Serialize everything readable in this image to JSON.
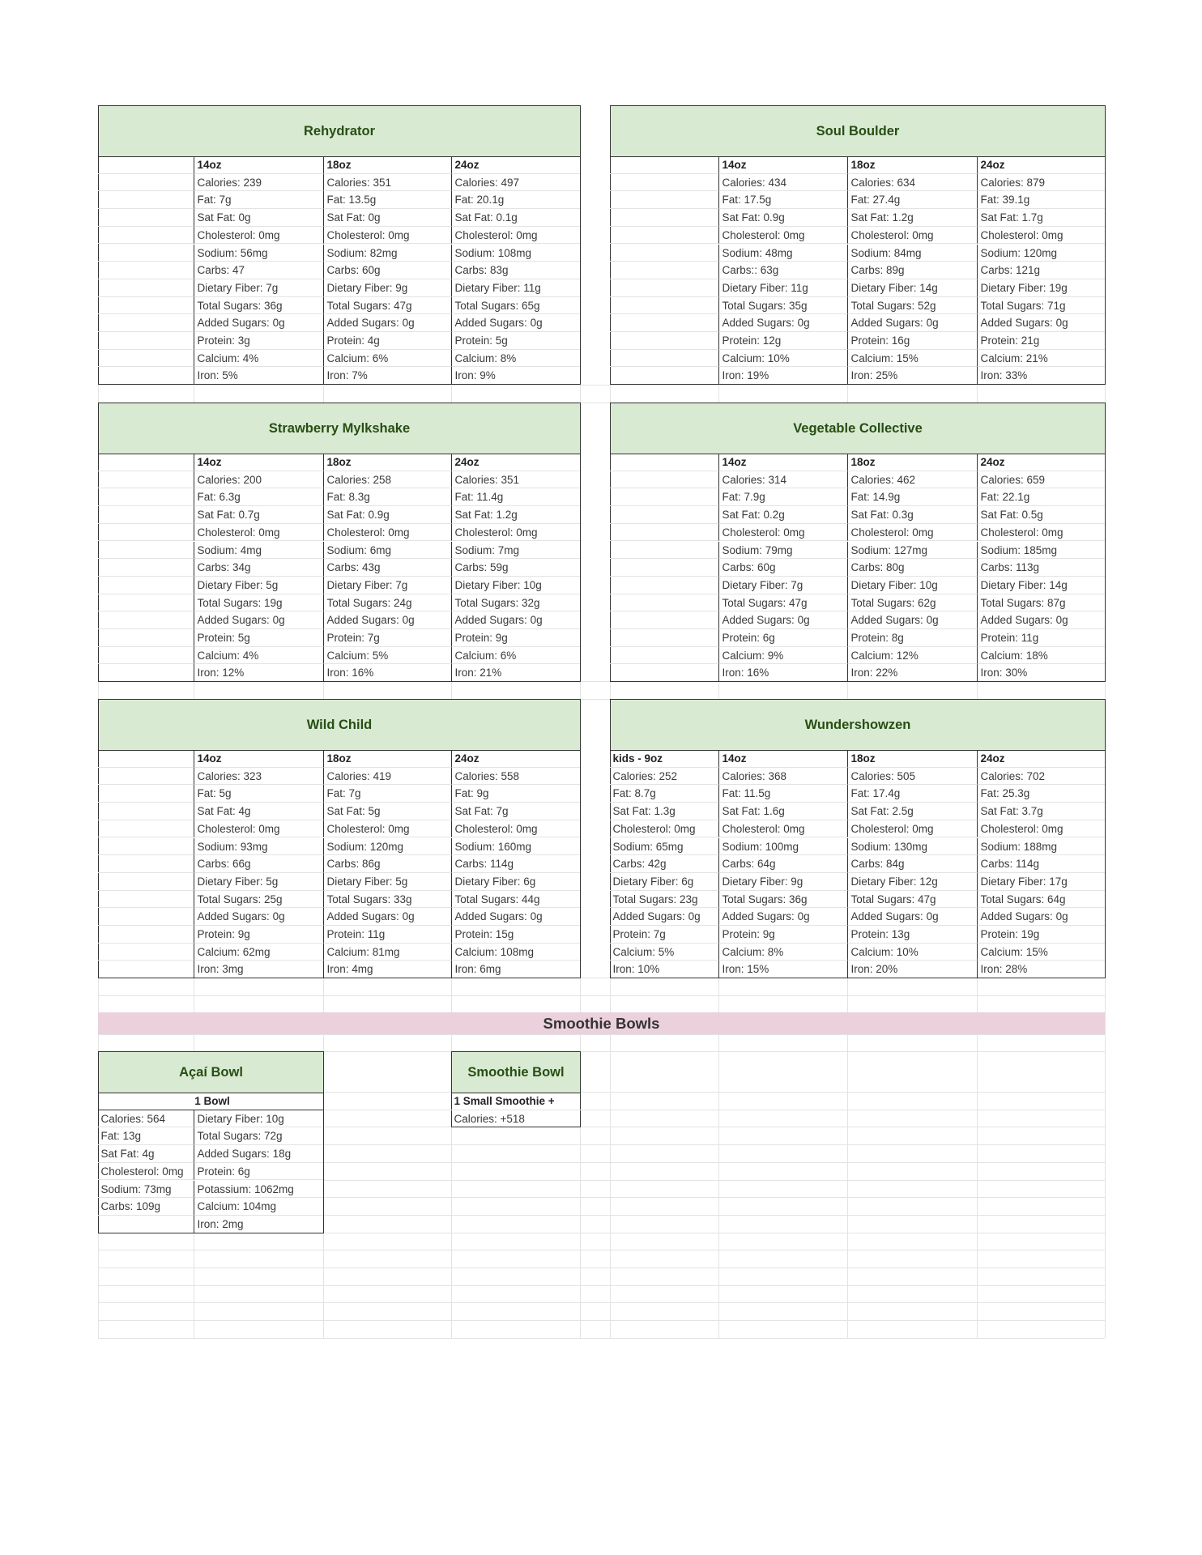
{
  "colors": {
    "header_bg": "#d9ead3",
    "header_text": "#274e13",
    "section_bg": "#ead1dc"
  },
  "drinks": [
    {
      "title": "Rehydrator",
      "columns": [
        {
          "size": "",
          "values": []
        },
        {
          "size": "14oz",
          "values": [
            "Calories: 239",
            "Fat: 7g",
            "Sat Fat: 0g",
            "Cholesterol: 0mg",
            "Sodium: 56mg",
            "Carbs: 47",
            "Dietary Fiber: 7g",
            "Total Sugars: 36g",
            "Added Sugars: 0g",
            "Protein: 3g",
            "Calcium: 4%",
            "Iron: 5%"
          ]
        },
        {
          "size": "18oz",
          "values": [
            "Calories: 351",
            "Fat: 13.5g",
            "Sat Fat: 0g",
            "Cholesterol: 0mg",
            "Sodium: 82mg",
            "Carbs: 60g",
            "Dietary Fiber: 9g",
            "Total Sugars: 47g",
            "Added Sugars: 0g",
            "Protein: 4g",
            "Calcium: 6%",
            "Iron: 7%"
          ]
        },
        {
          "size": "24oz",
          "values": [
            "Calories: 497",
            "Fat: 20.1g",
            "Sat Fat: 0.1g",
            "Cholesterol: 0mg",
            "Sodium: 108mg",
            "Carbs: 83g",
            "Dietary Fiber: 11g",
            "Total Sugars: 65g",
            "Added Sugars: 0g",
            "Protein: 5g",
            "Calcium: 8%",
            "Iron: 9%"
          ]
        }
      ]
    },
    {
      "title": "Soul Boulder",
      "columns": [
        {
          "size": "",
          "values": []
        },
        {
          "size": "14oz",
          "values": [
            "Calories: 434",
            "Fat: 17.5g",
            "Sat Fat: 0.9g",
            "Cholesterol: 0mg",
            "Sodium: 48mg",
            "Carbs:: 63g",
            "Dietary Fiber: 11g",
            "Total Sugars: 35g",
            "Added Sugars: 0g",
            "Protein: 12g",
            "Calcium: 10%",
            "Iron: 19%"
          ]
        },
        {
          "size": "18oz",
          "values": [
            "Calories: 634",
            "Fat: 27.4g",
            "Sat Fat: 1.2g",
            "Cholesterol: 0mg",
            "Sodium: 84mg",
            "Carbs: 89g",
            "Dietary Fiber: 14g",
            "Total Sugars: 52g",
            "Added Sugars: 0g",
            "Protein: 16g",
            "Calcium: 15%",
            "Iron: 25%"
          ]
        },
        {
          "size": "24oz",
          "values": [
            "Calories: 879",
            "Fat: 39.1g",
            "Sat Fat: 1.7g",
            "Cholesterol: 0mg",
            "Sodium: 120mg",
            "Carbs: 121g",
            "Dietary Fiber: 19g",
            "Total Sugars: 71g",
            "Added Sugars: 0g",
            "Protein: 21g",
            "Calcium: 21%",
            "Iron: 33%"
          ]
        }
      ]
    },
    {
      "title": "Strawberry Mylkshake",
      "columns": [
        {
          "size": "",
          "values": []
        },
        {
          "size": "14oz",
          "values": [
            "Calories: 200",
            "Fat: 6.3g",
            "Sat Fat: 0.7g",
            "Cholesterol: 0mg",
            "Sodium: 4mg",
            "Carbs: 34g",
            "Dietary Fiber: 5g",
            "Total Sugars: 19g",
            "Added Sugars: 0g",
            "Protein: 5g",
            "Calcium: 4%",
            "Iron: 12%"
          ]
        },
        {
          "size": "18oz",
          "values": [
            "Calories: 258",
            "Fat: 8.3g",
            "Sat Fat: 0.9g",
            "Cholesterol: 0mg",
            "Sodium: 6mg",
            "Carbs: 43g",
            "Dietary Fiber: 7g",
            "Total Sugars: 24g",
            "Added Sugars: 0g",
            "Protein: 7g",
            "Calcium: 5%",
            "Iron: 16%"
          ]
        },
        {
          "size": "24oz",
          "values": [
            "Calories: 351",
            "Fat: 11.4g",
            "Sat Fat: 1.2g",
            "Cholesterol: 0mg",
            "Sodium: 7mg",
            "Carbs: 59g",
            "Dietary Fiber: 10g",
            "Total Sugars: 32g",
            "Added Sugars: 0g",
            "Protein: 9g",
            "Calcium: 6%",
            "Iron: 21%"
          ]
        }
      ]
    },
    {
      "title": "Vegetable Collective",
      "columns": [
        {
          "size": "",
          "values": []
        },
        {
          "size": "14oz",
          "values": [
            "Calories: 314",
            "Fat: 7.9g",
            "Sat Fat: 0.2g",
            "Cholesterol: 0mg",
            "Sodium: 79mg",
            "Carbs: 60g",
            "Dietary Fiber: 7g",
            "Total Sugars: 47g",
            "Added Sugars: 0g",
            "Protein: 6g",
            "Calcium: 9%",
            "Iron: 16%"
          ]
        },
        {
          "size": "18oz",
          "values": [
            "Calories: 462",
            "Fat: 14.9g",
            "Sat Fat: 0.3g",
            "Cholesterol: 0mg",
            "Sodium: 127mg",
            "Carbs: 80g",
            "Dietary Fiber: 10g",
            "Total Sugars: 62g",
            "Added Sugars: 0g",
            "Protein: 8g",
            "Calcium: 12%",
            "Iron: 22%"
          ]
        },
        {
          "size": "24oz",
          "values": [
            "Calories: 659",
            "Fat: 22.1g",
            "Sat Fat: 0.5g",
            "Cholesterol: 0mg",
            "Sodium: 185mg",
            "Carbs: 113g",
            "Dietary Fiber: 14g",
            "Total Sugars: 87g",
            "Added Sugars: 0g",
            "Protein: 11g",
            "Calcium: 18%",
            "Iron: 30%"
          ]
        }
      ]
    },
    {
      "title": "Wild Child",
      "columns": [
        {
          "size": "",
          "values": []
        },
        {
          "size": "14oz",
          "values": [
            "Calories: 323",
            "Fat: 5g",
            "Sat Fat: 4g",
            "Cholesterol: 0mg",
            "Sodium: 93mg",
            "Carbs: 66g",
            "Dietary Fiber: 5g",
            "Total Sugars: 25g",
            "Added Sugars: 0g",
            "Protein: 9g",
            "Calcium: 62mg",
            "Iron: 3mg"
          ]
        },
        {
          "size": "18oz",
          "values": [
            "Calories: 419",
            "Fat: 7g",
            "Sat Fat: 5g",
            "Cholesterol: 0mg",
            "Sodium: 120mg",
            "Carbs: 86g",
            "Dietary Fiber: 5g",
            "Total Sugars: 33g",
            "Added Sugars: 0g",
            "Protein: 11g",
            "Calcium: 81mg",
            "Iron: 4mg"
          ]
        },
        {
          "size": "24oz",
          "values": [
            "Calories: 558",
            "Fat: 9g",
            "Sat Fat: 7g",
            "Cholesterol: 0mg",
            "Sodium: 160mg",
            "Carbs: 114g",
            "Dietary Fiber: 6g",
            "Total Sugars: 44g",
            "Added Sugars: 0g",
            "Protein: 15g",
            "Calcium: 108mg",
            "Iron: 6mg"
          ]
        }
      ]
    },
    {
      "title": "Wundershowzen",
      "columns": [
        {
          "size": "kids - 9oz",
          "values": [
            "Calories: 252",
            "Fat: 8.7g",
            "Sat Fat: 1.3g",
            "Cholesterol: 0mg",
            "Sodium: 65mg",
            "Carbs: 42g",
            "Dietary Fiber: 6g",
            "Total Sugars: 23g",
            "Added Sugars: 0g",
            "Protein: 7g",
            "Calcium: 5%",
            "Iron: 10%"
          ]
        },
        {
          "size": "14oz",
          "values": [
            "Calories: 368",
            "Fat: 11.5g",
            "Sat Fat: 1.6g",
            "Cholesterol: 0mg",
            "Sodium: 100mg",
            "Carbs: 64g",
            "Dietary Fiber: 9g",
            "Total Sugars: 36g",
            "Added Sugars: 0g",
            "Protein: 9g",
            "Calcium: 8%",
            "Iron: 15%"
          ]
        },
        {
          "size": "18oz",
          "values": [
            "Calories: 505",
            "Fat: 17.4g",
            "Sat Fat: 2.5g",
            "Cholesterol: 0mg",
            "Sodium: 130mg",
            "Carbs: 84g",
            "Dietary Fiber: 12g",
            "Total Sugars: 47g",
            "Added Sugars: 0g",
            "Protein: 13g",
            "Calcium: 10%",
            "Iron: 20%"
          ]
        },
        {
          "size": "24oz",
          "values": [
            "Calories: 702",
            "Fat: 25.3g",
            "Sat Fat: 3.7g",
            "Cholesterol: 0mg",
            "Sodium: 188mg",
            "Carbs: 114g",
            "Dietary Fiber: 17g",
            "Total Sugars: 64g",
            "Added Sugars: 0g",
            "Protein: 19g",
            "Calcium: 15%",
            "Iron: 28%"
          ]
        }
      ]
    }
  ],
  "section_title": "Smoothie Bowls",
  "acai_bowl": {
    "title": "Açaí Bowl",
    "size": "1 Bowl",
    "left": [
      "Calories: 564",
      "Fat: 13g",
      "Sat Fat: 4g",
      "Cholesterol: 0mg",
      "Sodium: 73mg",
      "Carbs: 109g",
      ""
    ],
    "right": [
      "Dietary Fiber: 10g",
      "Total Sugars: 72g",
      "Added Sugars: 18g",
      "Protein: 6g",
      "Potassium: 1062mg",
      "Calcium: 104mg",
      "Iron: 2mg"
    ]
  },
  "smoothie_bowl": {
    "title": "Smoothie Bowl",
    "size": "1 Small Smoothie +",
    "values": [
      "Calories: +518"
    ]
  }
}
